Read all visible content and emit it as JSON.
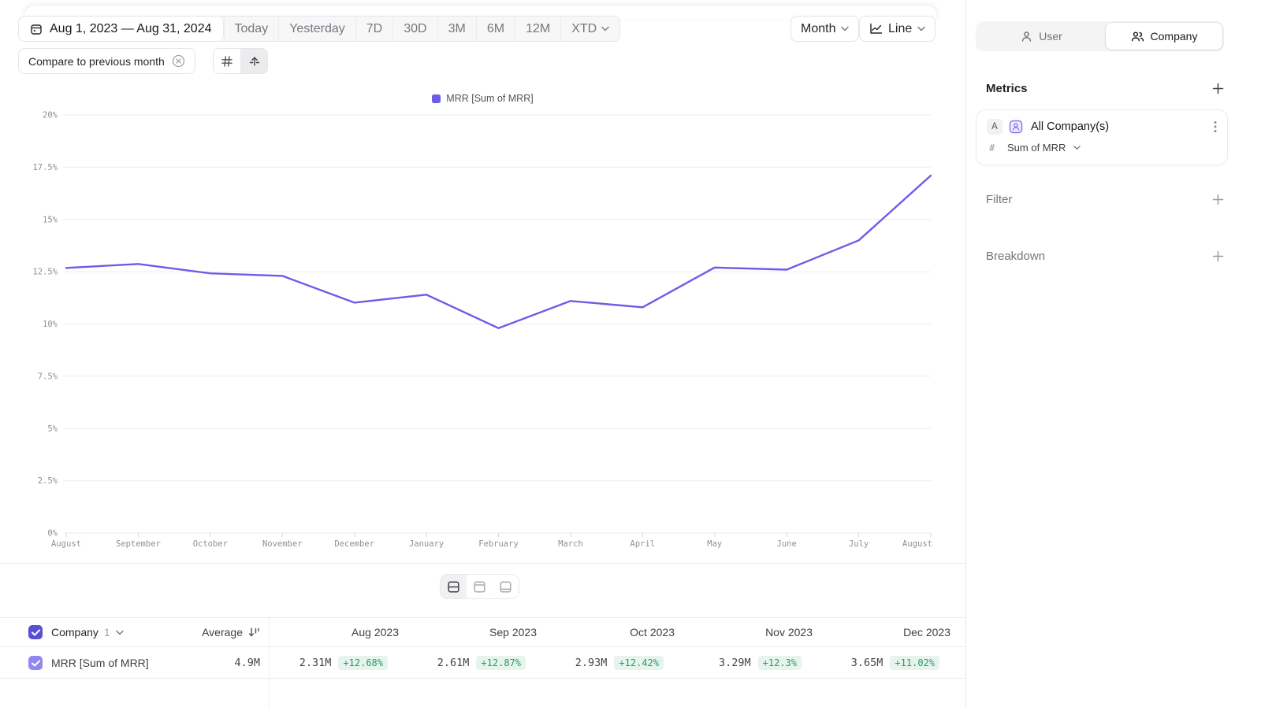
{
  "toolbar": {
    "date_range": "Aug 1, 2023 — Aug 31, 2024",
    "quick_ranges": [
      "Today",
      "Yesterday",
      "7D",
      "30D",
      "3M",
      "6M",
      "12M"
    ],
    "xtd_label": "XTD",
    "compare_label": "Compare to previous month",
    "granularity_label": "Month",
    "chart_type_label": "Line"
  },
  "sidebar": {
    "tabs": {
      "user": "User",
      "company": "Company"
    },
    "active_tab": "Company",
    "metrics_title": "Metrics",
    "metric_card": {
      "badge": "A",
      "name": "All Company(s)",
      "hash": "#",
      "aggregation": "Sum of MRR"
    },
    "filter_label": "Filter",
    "breakdown_label": "Breakdown"
  },
  "chart_data": {
    "type": "line",
    "legend": [
      "MRR [Sum of MRR]"
    ],
    "categories": [
      "August",
      "September",
      "October",
      "November",
      "December",
      "January",
      "February",
      "March",
      "April",
      "May",
      "June",
      "July",
      "August"
    ],
    "series": [
      {
        "name": "MRR [Sum of MRR]",
        "values": [
          12.68,
          12.87,
          12.42,
          12.3,
          11.02,
          11.4,
          9.8,
          11.1,
          10.8,
          12.7,
          12.6,
          14.0,
          17.1
        ]
      }
    ],
    "ylabel": "",
    "xlabel": "",
    "ylim": [
      0,
      20
    ],
    "yticks": [
      0,
      2.5,
      5,
      7.5,
      10,
      12.5,
      15,
      17.5,
      20
    ],
    "ytick_labels": [
      "0%",
      "2.5%",
      "5%",
      "7.5%",
      "10%",
      "12.5%",
      "15%",
      "17.5%",
      "20%"
    ],
    "grid": true,
    "legend_position": "top-center",
    "line_color": "#6d5ce8"
  },
  "table": {
    "group_label": "Company",
    "group_count": "1",
    "average_label": "Average",
    "columns": [
      "Aug 2023",
      "Sep 2023",
      "Oct 2023",
      "Nov 2023",
      "Dec 2023"
    ],
    "rows": [
      {
        "label": "MRR [Sum of MRR]",
        "average": "4.9M",
        "cells": [
          {
            "value": "2.31M",
            "delta": "+12.68%"
          },
          {
            "value": "2.61M",
            "delta": "+12.87%"
          },
          {
            "value": "2.93M",
            "delta": "+12.42%"
          },
          {
            "value": "3.29M",
            "delta": "+12.3%"
          },
          {
            "value": "3.65M",
            "delta": "+11.02%"
          }
        ]
      }
    ]
  },
  "colors": {
    "line": "#6d5ce8",
    "checkbox_header": "#5a4fd4",
    "checkbox_row": "#9087ef",
    "delta_text": "#259d69",
    "delta_bg": "#e6f4ed",
    "gridline": "#ededef"
  }
}
